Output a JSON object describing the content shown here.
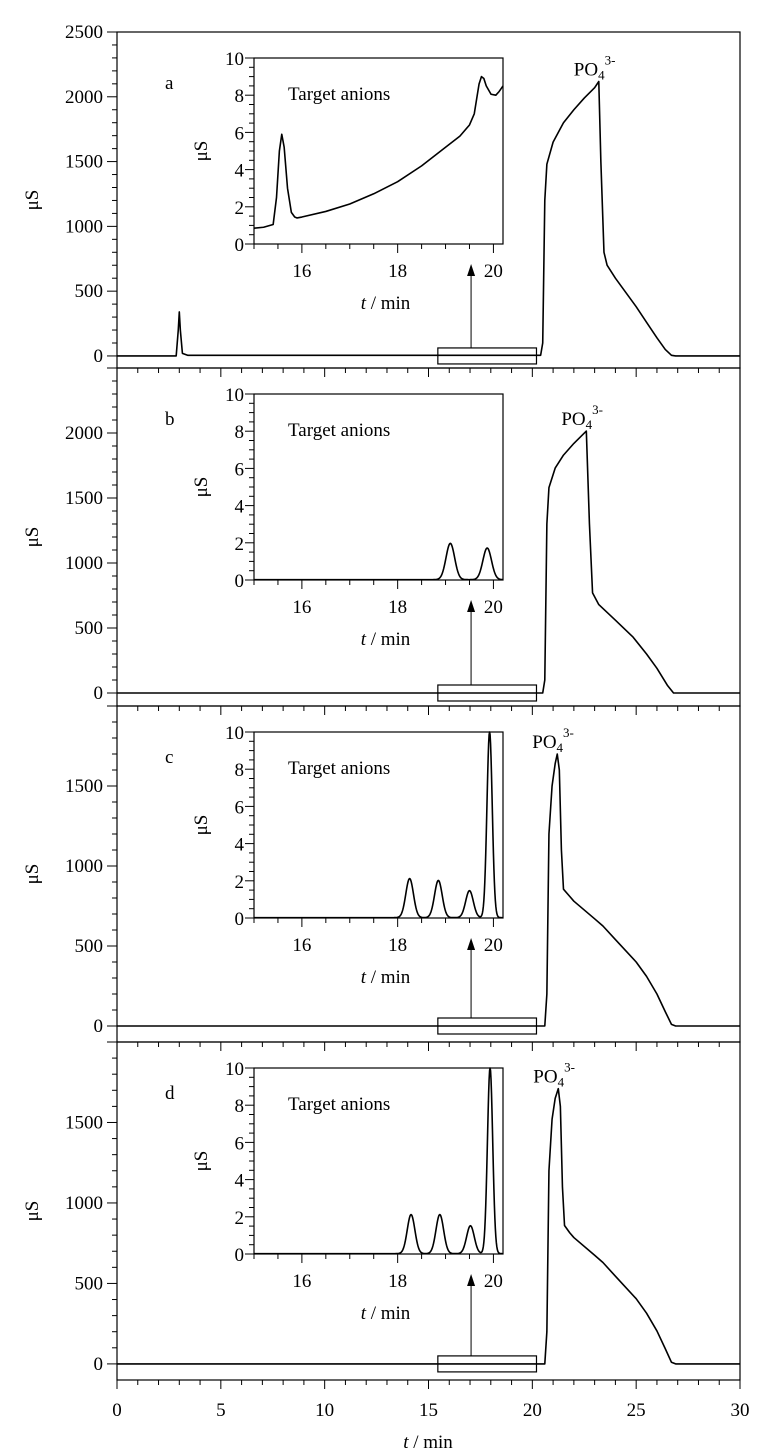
{
  "chart_data": [
    {
      "type": "line",
      "panel_label": "a",
      "ylabel": "μS",
      "xlim": [
        0,
        30
      ],
      "ylim": [
        -93,
        2500
      ],
      "yticks": [
        0,
        500,
        1000,
        1500,
        2000,
        2500
      ],
      "annotation": {
        "base": "PO",
        "sub": "4",
        "sup": "3-"
      },
      "points": [
        [
          0,
          0
        ],
        [
          2.85,
          0
        ],
        [
          2.95,
          200
        ],
        [
          3.0,
          340
        ],
        [
          3.05,
          200
        ],
        [
          3.15,
          20
        ],
        [
          3.4,
          5
        ],
        [
          20.4,
          5
        ],
        [
          20.5,
          100
        ],
        [
          20.6,
          1200
        ],
        [
          20.7,
          1480
        ],
        [
          21,
          1650
        ],
        [
          21.5,
          1800
        ],
        [
          22,
          1900
        ],
        [
          22.5,
          1990
        ],
        [
          23,
          2070
        ],
        [
          23.2,
          2118
        ],
        [
          23.3,
          1500
        ],
        [
          23.45,
          800
        ],
        [
          23.6,
          700
        ],
        [
          24,
          600
        ],
        [
          24.5,
          490
        ],
        [
          25,
          380
        ],
        [
          25.5,
          260
        ],
        [
          26,
          140
        ],
        [
          26.4,
          50
        ],
        [
          26.7,
          5
        ],
        [
          26.9,
          0
        ],
        [
          30,
          0
        ]
      ],
      "zoom_region": [
        15.45,
        20.2
      ],
      "inset": {
        "title": "Target anions",
        "ylabel": "μS",
        "xlabel_italic": "t",
        "xlabel_rest": " / min",
        "xlim": [
          15,
          20.2
        ],
        "ylim": [
          0,
          10
        ],
        "xticks": [
          16,
          18,
          20
        ],
        "yticks": [
          0,
          2,
          4,
          6,
          8,
          10
        ],
        "points": [
          [
            15,
            0.85
          ],
          [
            15.2,
            0.9
          ],
          [
            15.4,
            1.05
          ],
          [
            15.47,
            2.5
          ],
          [
            15.53,
            5.0
          ],
          [
            15.58,
            5.9
          ],
          [
            15.63,
            5.2
          ],
          [
            15.7,
            3.0
          ],
          [
            15.78,
            1.7
          ],
          [
            15.85,
            1.45
          ],
          [
            15.9,
            1.4
          ],
          [
            16,
            1.45
          ],
          [
            16.5,
            1.75
          ],
          [
            17,
            2.15
          ],
          [
            17.5,
            2.7
          ],
          [
            18,
            3.35
          ],
          [
            18.5,
            4.2
          ],
          [
            19,
            5.2
          ],
          [
            19.3,
            5.8
          ],
          [
            19.5,
            6.4
          ],
          [
            19.6,
            7.0
          ],
          [
            19.65,
            7.8
          ],
          [
            19.7,
            8.6
          ],
          [
            19.75,
            9.0
          ],
          [
            19.8,
            8.9
          ],
          [
            19.85,
            8.5
          ],
          [
            19.95,
            8.05
          ],
          [
            20.05,
            8.0
          ],
          [
            20.12,
            8.2
          ],
          [
            20.2,
            8.5
          ]
        ]
      }
    },
    {
      "type": "line",
      "panel_label": "b",
      "ylabel": "μS",
      "xlim": [
        0,
        30
      ],
      "ylim": [
        -100,
        2500
      ],
      "yticks": [
        0,
        500,
        1000,
        1500,
        2000
      ],
      "annotation": {
        "base": "PO",
        "sub": "4",
        "sup": "3-"
      },
      "points": [
        [
          0,
          0
        ],
        [
          20.5,
          0
        ],
        [
          20.6,
          100
        ],
        [
          20.7,
          1300
        ],
        [
          20.8,
          1580
        ],
        [
          21.1,
          1730
        ],
        [
          21.5,
          1830
        ],
        [
          22,
          1920
        ],
        [
          22.6,
          2015
        ],
        [
          22.75,
          1300
        ],
        [
          22.9,
          770
        ],
        [
          23.2,
          680
        ],
        [
          24,
          560
        ],
        [
          24.85,
          430
        ],
        [
          25.5,
          300
        ],
        [
          26,
          190
        ],
        [
          26.5,
          60
        ],
        [
          26.8,
          0
        ],
        [
          30,
          0
        ]
      ],
      "zoom_region": [
        15.45,
        20.2
      ],
      "inset": {
        "title": "Target anions",
        "ylabel": "μS",
        "xlabel_italic": "t",
        "xlabel_rest": " / min",
        "xlim": [
          15,
          20.2
        ],
        "ylim": [
          0,
          10
        ],
        "xticks": [
          16,
          18,
          20
        ],
        "yticks": [
          0,
          2,
          4,
          6,
          8,
          10
        ],
        "peaks": [
          {
            "t": 19.1,
            "height": 1.95,
            "width": 0.09
          },
          {
            "t": 19.87,
            "height": 1.7,
            "width": 0.09
          }
        ]
      }
    },
    {
      "type": "line",
      "panel_label": "c",
      "ylabel": "μS",
      "xlim": [
        0,
        30
      ],
      "ylim": [
        -100,
        2000
      ],
      "yticks": [
        0,
        500,
        1000,
        1500
      ],
      "annotation": {
        "base": "PO",
        "sub": "4",
        "sup": "3-"
      },
      "points": [
        [
          0,
          0
        ],
        [
          20.6,
          0
        ],
        [
          20.7,
          200
        ],
        [
          20.8,
          1200
        ],
        [
          20.95,
          1500
        ],
        [
          21.1,
          1640
        ],
        [
          21.2,
          1700
        ],
        [
          21.3,
          1600
        ],
        [
          21.4,
          1100
        ],
        [
          21.5,
          855
        ],
        [
          21.8,
          810
        ],
        [
          22,
          780
        ],
        [
          23,
          670
        ],
        [
          23.4,
          625
        ],
        [
          24,
          540
        ],
        [
          25,
          400
        ],
        [
          25.5,
          310
        ],
        [
          26,
          200
        ],
        [
          26.4,
          90
        ],
        [
          26.7,
          10
        ],
        [
          26.9,
          0
        ],
        [
          30,
          0
        ]
      ],
      "zoom_region": [
        15.45,
        20.2
      ],
      "inset": {
        "title": "Target anions",
        "ylabel": "μS",
        "xlabel_italic": "t",
        "xlabel_rest": " / min",
        "xlim": [
          15,
          20.2
        ],
        "ylim": [
          0,
          10
        ],
        "xticks": [
          16,
          18,
          20
        ],
        "yticks": [
          0,
          2,
          4,
          6,
          8,
          10
        ],
        "peaks": [
          {
            "t": 18.25,
            "height": 2.1,
            "width": 0.08
          },
          {
            "t": 18.85,
            "height": 2.0,
            "width": 0.08
          },
          {
            "t": 19.5,
            "height": 1.45,
            "width": 0.08
          },
          {
            "t": 19.92,
            "height": 10,
            "width": 0.055
          }
        ]
      }
    },
    {
      "type": "line",
      "panel_label": "d",
      "ylabel": "μS",
      "xlim": [
        0,
        30
      ],
      "ylim": [
        -100,
        2000
      ],
      "yticks": [
        0,
        500,
        1000,
        1500
      ],
      "annotation": {
        "base": "PO",
        "sub": "4",
        "sup": "3-"
      },
      "points": [
        [
          0,
          0
        ],
        [
          20.6,
          0
        ],
        [
          20.7,
          200
        ],
        [
          20.8,
          1200
        ],
        [
          20.95,
          1520
        ],
        [
          21.1,
          1650
        ],
        [
          21.25,
          1710
        ],
        [
          21.35,
          1600
        ],
        [
          21.45,
          1100
        ],
        [
          21.55,
          860
        ],
        [
          21.8,
          815
        ],
        [
          22,
          785
        ],
        [
          23,
          675
        ],
        [
          23.4,
          630
        ],
        [
          24,
          545
        ],
        [
          25,
          405
        ],
        [
          25.5,
          315
        ],
        [
          26,
          205
        ],
        [
          26.4,
          95
        ],
        [
          26.7,
          10
        ],
        [
          26.9,
          0
        ],
        [
          30,
          0
        ]
      ],
      "zoom_region": [
        15.45,
        20.2
      ],
      "inset": {
        "title": "Target anions",
        "ylabel": "μS",
        "xlabel_italic": "t",
        "xlabel_rest": " / min",
        "xlim": [
          15,
          20.2
        ],
        "ylim": [
          0,
          10
        ],
        "xticks": [
          16,
          18,
          20
        ],
        "yticks": [
          0,
          2,
          4,
          6,
          8,
          10
        ],
        "peaks": [
          {
            "t": 18.28,
            "height": 2.1,
            "width": 0.08
          },
          {
            "t": 18.88,
            "height": 2.1,
            "width": 0.08
          },
          {
            "t": 19.52,
            "height": 1.5,
            "width": 0.08
          },
          {
            "t": 19.93,
            "height": 10,
            "width": 0.055
          }
        ]
      }
    }
  ],
  "x_axis": {
    "ticks": [
      0,
      5,
      10,
      15,
      20,
      25,
      30
    ],
    "label_italic": "t",
    "label_rest": " / min"
  }
}
